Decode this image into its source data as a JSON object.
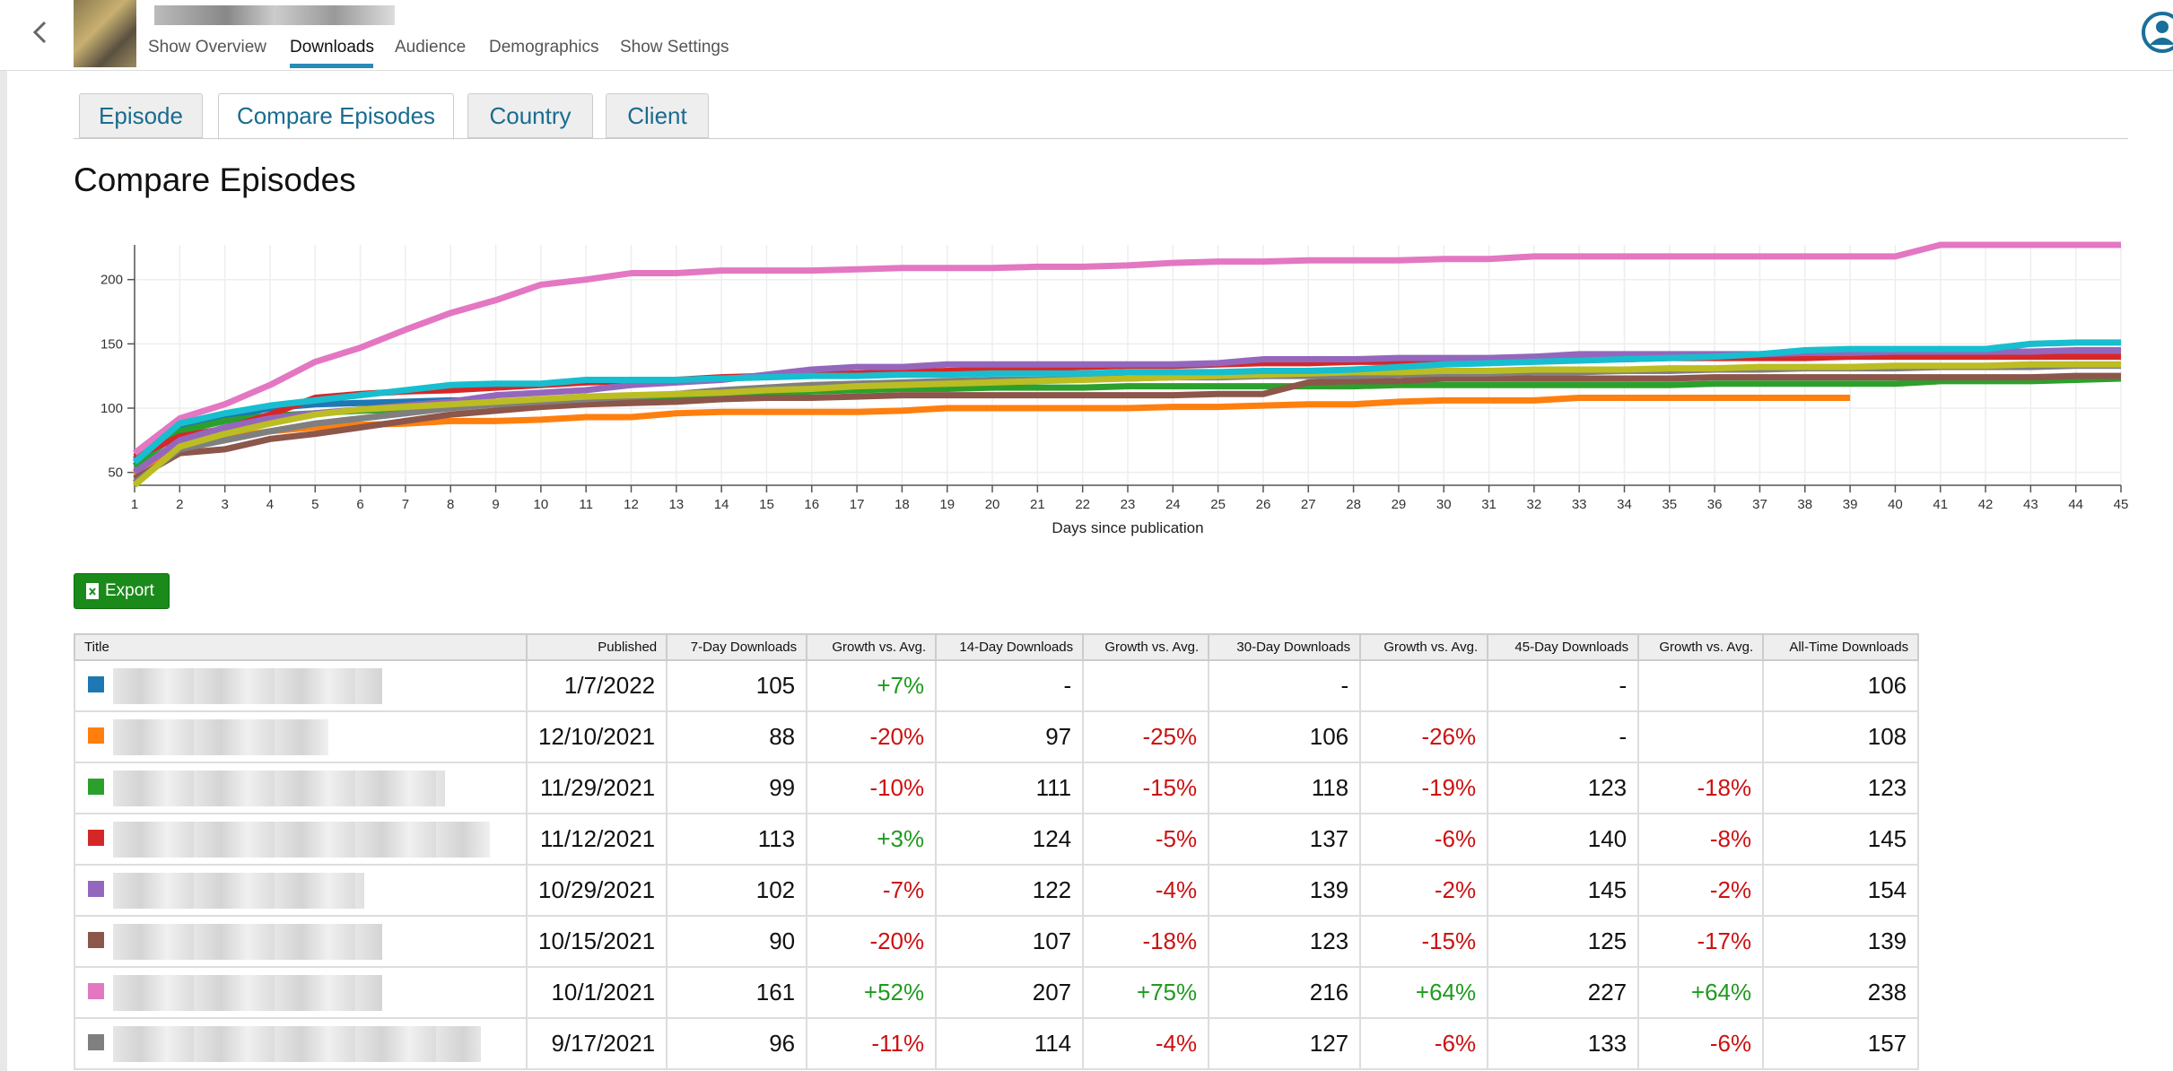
{
  "nav": {
    "links": [
      "Show Overview",
      "Downloads",
      "Audience",
      "Demographics",
      "Show Settings"
    ],
    "active": 1
  },
  "tabs": {
    "items": [
      "Episode",
      "Compare Episodes",
      "Country",
      "Client"
    ],
    "active": 1
  },
  "heading": "Compare Episodes",
  "chart_data": {
    "type": "line",
    "xlabel": "Days since publication",
    "x": [
      1,
      2,
      3,
      4,
      5,
      6,
      7,
      8,
      9,
      10,
      11,
      12,
      13,
      14,
      15,
      16,
      17,
      18,
      19,
      20,
      21,
      22,
      23,
      24,
      25,
      26,
      27,
      28,
      29,
      30,
      31,
      32,
      33,
      34,
      35,
      36,
      37,
      38,
      39,
      40,
      41,
      42,
      43,
      44,
      45
    ],
    "xlim": [
      1,
      45
    ],
    "xticks": [
      1,
      2,
      3,
      4,
      5,
      6,
      7,
      8,
      9,
      10,
      11,
      12,
      13,
      14,
      15,
      16,
      17,
      18,
      19,
      20,
      21,
      22,
      23,
      24,
      25,
      26,
      27,
      28,
      29,
      30,
      31,
      32,
      33,
      34,
      35,
      36,
      37,
      38,
      39,
      40,
      41,
      42,
      43,
      44,
      45
    ],
    "ylim": [
      40,
      227
    ],
    "yticks": [
      50,
      100,
      150,
      200
    ],
    "grid": true,
    "series": [
      {
        "color": "#1f77b4",
        "values": [
          60,
          85,
          92,
          100,
          103,
          104,
          105,
          106,
          106,
          null,
          null,
          null,
          null,
          null,
          null,
          null,
          null,
          null,
          null,
          null,
          null,
          null,
          null,
          null,
          null,
          null,
          null,
          null,
          null,
          null,
          null,
          null,
          null,
          null,
          null,
          null,
          null,
          null,
          null,
          null,
          null,
          null,
          null,
          null,
          null
        ]
      },
      {
        "color": "#ff7f0e",
        "values": [
          48,
          70,
          77,
          82,
          85,
          87,
          88,
          90,
          90,
          91,
          93,
          93,
          96,
          97,
          97,
          97,
          97,
          98,
          100,
          100,
          100,
          100,
          100,
          101,
          101,
          102,
          103,
          103,
          105,
          106,
          106,
          106,
          108,
          108,
          108,
          108,
          108,
          108,
          108,
          null,
          null,
          null,
          null,
          null,
          null
        ]
      },
      {
        "color": "#2ca02c",
        "values": [
          55,
          82,
          90,
          94,
          96,
          98,
          99,
          101,
          103,
          105,
          106,
          107,
          108,
          111,
          112,
          113,
          114,
          115,
          115,
          116,
          116,
          116,
          117,
          117,
          117,
          117,
          117,
          117,
          118,
          118,
          118,
          118,
          118,
          118,
          118,
          119,
          119,
          119,
          119,
          119,
          121,
          121,
          121,
          122,
          123
        ]
      },
      {
        "color": "#d62728",
        "values": [
          62,
          78,
          84,
          95,
          108,
          111,
          113,
          114,
          116,
          118,
          120,
          121,
          122,
          124,
          125,
          126,
          127,
          128,
          129,
          130,
          131,
          132,
          133,
          133,
          134,
          135,
          135,
          136,
          136,
          137,
          137,
          138,
          138,
          138,
          139,
          139,
          139,
          139,
          140,
          140,
          140,
          140,
          140,
          140,
          140
        ]
      },
      {
        "color": "#9467bd",
        "values": [
          50,
          75,
          85,
          92,
          96,
          99,
          102,
          105,
          110,
          112,
          114,
          118,
          120,
          122,
          126,
          130,
          132,
          132,
          134,
          134,
          134,
          134,
          134,
          134,
          135,
          138,
          138,
          138,
          139,
          139,
          139,
          140,
          142,
          142,
          142,
          142,
          142,
          143,
          143,
          144,
          144,
          144,
          144,
          145,
          145
        ]
      },
      {
        "color": "#8c564b",
        "values": [
          45,
          65,
          68,
          76,
          80,
          85,
          90,
          95,
          98,
          101,
          103,
          104,
          105,
          107,
          108,
          108,
          109,
          110,
          110,
          110,
          110,
          110,
          110,
          110,
          111,
          111,
          120,
          121,
          121,
          123,
          123,
          123,
          123,
          123,
          123,
          124,
          124,
          124,
          124,
          124,
          124,
          124,
          124,
          125,
          125
        ]
      },
      {
        "color": "#e377c2",
        "values": [
          65,
          92,
          103,
          118,
          136,
          147,
          161,
          174,
          184,
          196,
          200,
          205,
          205,
          207,
          207,
          207,
          208,
          209,
          209,
          209,
          210,
          210,
          211,
          213,
          214,
          214,
          215,
          215,
          215,
          216,
          216,
          218,
          218,
          218,
          218,
          218,
          218,
          218,
          218,
          218,
          227,
          227,
          227,
          227,
          227
        ]
      },
      {
        "color": "#7f7f7f",
        "values": [
          42,
          68,
          75,
          82,
          88,
          92,
          96,
          100,
          103,
          105,
          107,
          109,
          111,
          114,
          116,
          118,
          119,
          120,
          121,
          122,
          122,
          123,
          123,
          124,
          124,
          125,
          125,
          125,
          126,
          127,
          127,
          128,
          128,
          129,
          129,
          130,
          130,
          131,
          131,
          131,
          132,
          132,
          132,
          133,
          133
        ]
      },
      {
        "color": "#bcbd22",
        "values": [
          40,
          70,
          80,
          88,
          95,
          99,
          101,
          103,
          105,
          107,
          109,
          110,
          111,
          112,
          114,
          115,
          117,
          118,
          119,
          120,
          121,
          122,
          123,
          124,
          125,
          126,
          127,
          128,
          128,
          129,
          129,
          130,
          130,
          130,
          131,
          131,
          132,
          132,
          132,
          133,
          133,
          133,
          134,
          134,
          134
        ]
      },
      {
        "color": "#17becf",
        "values": [
          58,
          88,
          96,
          102,
          106,
          110,
          114,
          118,
          119,
          119,
          122,
          122,
          122,
          123,
          124,
          125,
          125,
          126,
          126,
          127,
          127,
          127,
          128,
          128,
          128,
          129,
          129,
          130,
          132,
          134,
          135,
          136,
          137,
          138,
          139,
          140,
          142,
          145,
          146,
          146,
          146,
          146,
          150,
          151,
          151
        ]
      }
    ]
  },
  "export": "Export",
  "table": {
    "headers": [
      "Title",
      "Published",
      "7-Day Downloads",
      "Growth vs. Avg.",
      "14-Day Downloads",
      "Growth vs. Avg.",
      "30-Day Downloads",
      "Growth vs. Avg.",
      "45-Day Downloads",
      "Growth vs. Avg.",
      "All-Time Downloads"
    ],
    "rows": [
      {
        "color": "#1f77b4",
        "cells": [
          "1/7/2022",
          "105",
          "+7%",
          "-",
          null,
          "-",
          null,
          "-",
          null,
          "106"
        ]
      },
      {
        "color": "#ff7f0e",
        "cells": [
          "12/10/2021",
          "88",
          "-20%",
          "97",
          "-25%",
          "106",
          "-26%",
          "-",
          null,
          "108"
        ]
      },
      {
        "color": "#2ca02c",
        "cells": [
          "11/29/2021",
          "99",
          "-10%",
          "111",
          "-15%",
          "118",
          "-19%",
          "123",
          "-18%",
          "123"
        ]
      },
      {
        "color": "#d62728",
        "cells": [
          "11/12/2021",
          "113",
          "+3%",
          "124",
          "-5%",
          "137",
          "-6%",
          "140",
          "-8%",
          "145"
        ]
      },
      {
        "color": "#9467bd",
        "cells": [
          "10/29/2021",
          "102",
          "-7%",
          "122",
          "-4%",
          "139",
          "-2%",
          "145",
          "-2%",
          "154"
        ]
      },
      {
        "color": "#8c564b",
        "cells": [
          "10/15/2021",
          "90",
          "-20%",
          "107",
          "-18%",
          "123",
          "-15%",
          "125",
          "-17%",
          "139"
        ]
      },
      {
        "color": "#e377c2",
        "cells": [
          "10/1/2021",
          "161",
          "+52%",
          "207",
          "+75%",
          "216",
          "+64%",
          "227",
          "+64%",
          "238"
        ]
      },
      {
        "color": "#7f7f7f",
        "cells": [
          "9/17/2021",
          "96",
          "-11%",
          "114",
          "-4%",
          "127",
          "-6%",
          "133",
          "-6%",
          "157"
        ]
      }
    ]
  }
}
